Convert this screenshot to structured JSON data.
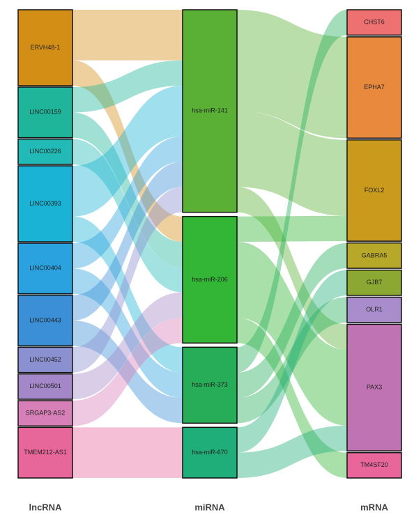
{
  "chart_data": {
    "type": "sankey",
    "column_labels": [
      "lncRNA",
      "miRNA",
      "mRNA"
    ],
    "nodes": [
      {
        "name": "ERVH48-1",
        "column": 0,
        "color": "#d38e16"
      },
      {
        "name": "LINC00159",
        "column": 0,
        "color": "#1fb59a"
      },
      {
        "name": "LINC00226",
        "column": 0,
        "color": "#22bab6"
      },
      {
        "name": "LINC00393",
        "column": 0,
        "color": "#1ab3d6"
      },
      {
        "name": "LINC00404",
        "column": 0,
        "color": "#2aa2e0"
      },
      {
        "name": "LINC00443",
        "column": 0,
        "color": "#3b8fd6"
      },
      {
        "name": "LINC00452",
        "column": 0,
        "color": "#8a90d0"
      },
      {
        "name": "LINC00501",
        "column": 0,
        "color": "#a487c8"
      },
      {
        "name": "SRGAP3-AS2",
        "column": 0,
        "color": "#d77fb7"
      },
      {
        "name": "TMEM212-AS1",
        "column": 0,
        "color": "#e8679a"
      },
      {
        "name": "hsa-miR-141",
        "column": 1,
        "color": "#5ab035"
      },
      {
        "name": "hsa-miR-206",
        "column": 1,
        "color": "#33b535"
      },
      {
        "name": "hsa-miR-373",
        "column": 1,
        "color": "#27ad58"
      },
      {
        "name": "hsa-miR-670",
        "column": 1,
        "color": "#1fae7a"
      },
      {
        "name": "CHST6",
        "column": 2,
        "color": "#ee7070"
      },
      {
        "name": "EPHA7",
        "column": 2,
        "color": "#e8893d"
      },
      {
        "name": "FOXL2",
        "column": 2,
        "color": "#c99a1c"
      },
      {
        "name": "GABRA5",
        "column": 2,
        "color": "#b8a82a"
      },
      {
        "name": "GJB7",
        "column": 2,
        "color": "#8aa832"
      },
      {
        "name": "OLR1",
        "column": 2,
        "color": "#a98ccc"
      },
      {
        "name": "PAX3",
        "column": 2,
        "color": "#c073b2"
      },
      {
        "name": "TM4SF20",
        "column": 2,
        "color": "#e8669a"
      }
    ],
    "links": [
      {
        "source": 0,
        "target": 10,
        "value": 2
      },
      {
        "source": 0,
        "target": 11,
        "value": 1
      },
      {
        "source": 1,
        "target": 10,
        "value": 1
      },
      {
        "source": 1,
        "target": 11,
        "value": 1
      },
      {
        "source": 2,
        "target": 11,
        "value": 1
      },
      {
        "source": 3,
        "target": 10,
        "value": 2
      },
      {
        "source": 3,
        "target": 12,
        "value": 1
      },
      {
        "source": 4,
        "target": 10,
        "value": 1
      },
      {
        "source": 4,
        "target": 12,
        "value": 1
      },
      {
        "source": 5,
        "target": 10,
        "value": 1
      },
      {
        "source": 5,
        "target": 12,
        "value": 1
      },
      {
        "source": 6,
        "target": 10,
        "value": 1
      },
      {
        "source": 7,
        "target": 11,
        "value": 1
      },
      {
        "source": 8,
        "target": 11,
        "value": 1
      },
      {
        "source": 9,
        "target": 13,
        "value": 2
      },
      {
        "source": 10,
        "target": 15,
        "value": 4
      },
      {
        "source": 10,
        "target": 16,
        "value": 3
      },
      {
        "source": 10,
        "target": 20,
        "value": 1
      },
      {
        "source": 11,
        "target": 16,
        "value": 1
      },
      {
        "source": 11,
        "target": 20,
        "value": 3
      },
      {
        "source": 11,
        "target": 21,
        "value": 1
      },
      {
        "source": 12,
        "target": 14,
        "value": 1
      },
      {
        "source": 12,
        "target": 17,
        "value": 1
      },
      {
        "source": 12,
        "target": 19,
        "value": 1
      },
      {
        "source": 13,
        "target": 18,
        "value": 1
      },
      {
        "source": 13,
        "target": 20,
        "value": 1
      }
    ]
  }
}
